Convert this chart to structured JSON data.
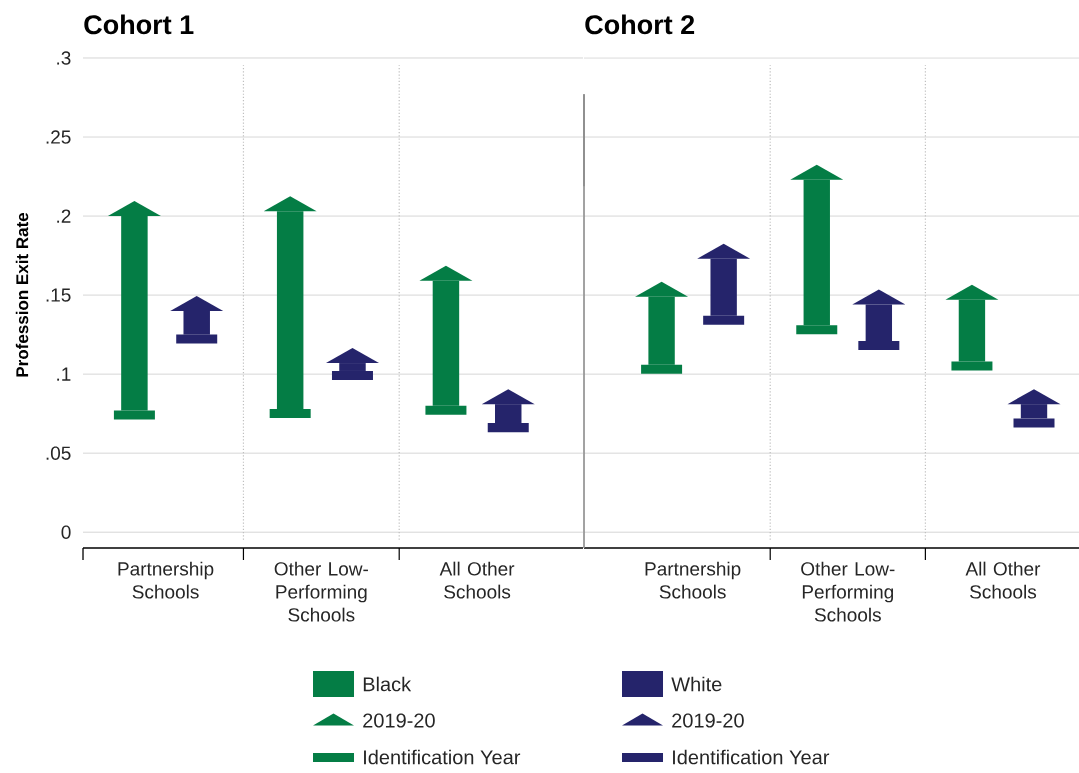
{
  "chart_data": [
    {
      "type": "bar",
      "title": "Cohort 1",
      "ylabel": "Profession Exit Rate",
      "categories": [
        "Partnership Schools",
        "Other Low-Performing Schools",
        "All Other Schools"
      ],
      "ylim": [
        -0.01,
        0.3
      ],
      "yticks": [
        {
          "value": 0,
          "label": "0"
        },
        {
          "value": 0.05,
          "label": ".05"
        },
        {
          "value": 0.1,
          "label": ".1"
        },
        {
          "value": 0.15,
          "label": ".15"
        },
        {
          "value": 0.2,
          "label": ".2"
        },
        {
          "value": 0.25,
          "label": ".25"
        },
        {
          "value": 0.3,
          "label": ".3"
        }
      ],
      "grid": "y",
      "legend": "bottom",
      "annotations": [
        "2019-20",
        "Identification Year",
        "2019-20",
        "Identification Year"
      ],
      "series": [
        {
          "name": "Black",
          "color": "#047d45",
          "values": [
            0.123,
            0.125,
            0.079
          ],
          "base": [
            0.077,
            0.078,
            0.08
          ]
        },
        {
          "name": "White",
          "color": "#25246b",
          "values": [
            0.015,
            0.005,
            0.012
          ],
          "base": [
            0.125,
            0.102,
            0.069
          ]
        }
      ]
    },
    {
      "type": "bar",
      "title": "Cohort 2",
      "categories": [
        "Partnership Schools",
        "Other Low-Performing Schools",
        "All Other Schools"
      ],
      "ylim": [
        -0.01,
        0.3
      ],
      "yticks": [
        {
          "value": 0,
          "label": null
        },
        {
          "value": 0.05,
          "label": null
        },
        {
          "value": 0.1,
          "label": null
        },
        {
          "value": 0.15,
          "label": null
        },
        {
          "value": 0.2,
          "label": null
        },
        {
          "value": 0.25,
          "label": null
        },
        {
          "value": 0.3,
          "label": null
        }
      ],
      "grid": "y",
      "tick_labels": "x",
      "series": [
        {
          "color": "#047d45",
          "values": [
            0.043,
            0.092,
            0.039
          ],
          "base": [
            0.106,
            0.131,
            0.108
          ]
        },
        {
          "color": "#25246b",
          "values": [
            0.036,
            0.023,
            0.009
          ],
          "base": [
            0.137,
            0.121,
            0.072
          ]
        }
      ]
    }
  ]
}
